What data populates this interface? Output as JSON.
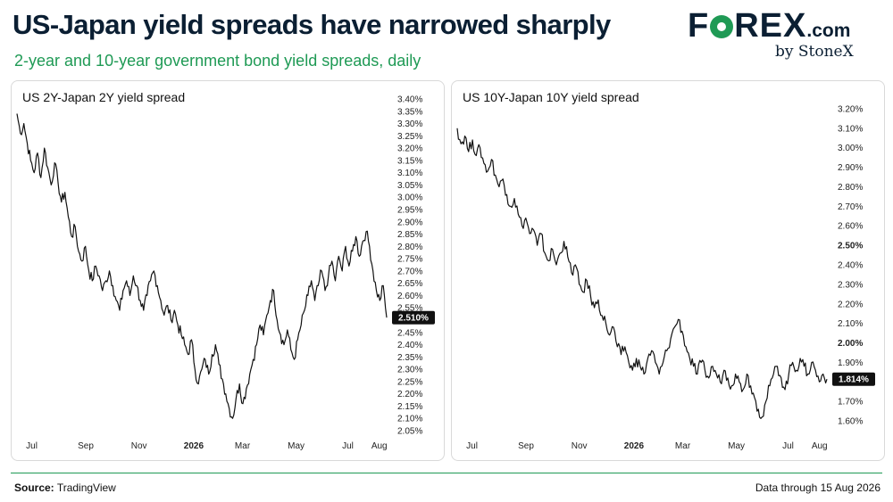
{
  "header": {
    "title": "US-Japan yield spreads have narrowed sharply",
    "subtitle": "2-year and 10-year government bond yield spreads, daily"
  },
  "logo": {
    "text_left": "F",
    "text_right": "REX",
    "suffix": ".com",
    "byline": "by StoneX"
  },
  "footer": {
    "source_label": "Source:",
    "source_value": "TradingView",
    "data_through": "Data through 15 Aug 2026"
  },
  "colors": {
    "line": "#111111",
    "accent_green": "#1f9a55",
    "navy": "#0b1f33",
    "badge_bg": "#111111",
    "badge_text": "#ffffff"
  },
  "chart_data": [
    {
      "type": "line",
      "title": "US 2Y-Japan 2Y yield spread",
      "ylim": [
        2.05,
        3.4
      ],
      "y_ticks": [
        "3.40%",
        "3.35%",
        "3.30%",
        "3.25%",
        "3.20%",
        "3.15%",
        "3.10%",
        "3.05%",
        "3.00%",
        "2.95%",
        "2.90%",
        "2.85%",
        "2.80%",
        "2.75%",
        "2.70%",
        "2.65%",
        "2.60%",
        "2.55%",
        "2.45%",
        "2.40%",
        "2.35%",
        "2.30%",
        "2.25%",
        "2.20%",
        "2.15%",
        "2.10%",
        "2.05%"
      ],
      "x_ticks": [
        {
          "label": "Jul",
          "pos": 0.04
        },
        {
          "label": "Sep",
          "pos": 0.186
        },
        {
          "label": "Nov",
          "pos": 0.33
        },
        {
          "label": "2026",
          "pos": 0.478,
          "bold": true
        },
        {
          "label": "Mar",
          "pos": 0.61
        },
        {
          "label": "May",
          "pos": 0.755
        },
        {
          "label": "Jul",
          "pos": 0.895
        },
        {
          "label": "Aug",
          "pos": 0.98
        }
      ],
      "last_value": 2.51,
      "last_label": "2.510%",
      "series": [
        {
          "values": [
            3.34,
            3.26,
            3.3,
            3.22,
            3.15,
            3.1,
            3.18,
            3.08,
            3.2,
            3.12,
            3.05,
            3.14,
            3.06,
            2.98,
            3.02,
            2.92,
            2.84,
            2.88,
            2.78,
            2.74,
            2.8,
            2.7,
            2.66,
            2.72,
            2.68,
            2.62,
            2.66,
            2.7,
            2.64,
            2.58,
            2.54,
            2.62,
            2.66,
            2.6,
            2.68,
            2.64,
            2.58,
            2.54,
            2.6,
            2.66,
            2.7,
            2.64,
            2.58,
            2.52,
            2.56,
            2.5,
            2.54,
            2.48,
            2.44,
            2.4,
            2.36,
            2.42,
            2.3,
            2.24,
            2.3,
            2.34,
            2.28,
            2.36,
            2.4,
            2.32,
            2.26,
            2.2,
            2.14,
            2.1,
            2.18,
            2.24,
            2.16,
            2.22,
            2.28,
            2.34,
            2.4,
            2.48,
            2.44,
            2.52,
            2.58,
            2.62,
            2.5,
            2.44,
            2.4,
            2.46,
            2.38,
            2.34,
            2.42,
            2.48,
            2.54,
            2.6,
            2.66,
            2.58,
            2.64,
            2.7,
            2.62,
            2.68,
            2.74,
            2.66,
            2.76,
            2.7,
            2.8,
            2.72,
            2.78,
            2.84,
            2.76,
            2.82,
            2.86,
            2.8,
            2.7,
            2.62,
            2.58,
            2.64,
            2.51
          ]
        }
      ]
    },
    {
      "type": "line",
      "title": "US 10Y-Japan 10Y yield spread",
      "ylim": [
        1.55,
        3.25
      ],
      "y_ticks": [
        {
          "label": "3.20%",
          "v": 3.2
        },
        {
          "label": "3.10%",
          "v": 3.1
        },
        {
          "label": "3.00%",
          "v": 3.0
        },
        {
          "label": "2.90%",
          "v": 2.9
        },
        {
          "label": "2.80%",
          "v": 2.8
        },
        {
          "label": "2.70%",
          "v": 2.7
        },
        {
          "label": "2.60%",
          "v": 2.6
        },
        {
          "label": "2.50%",
          "v": 2.5,
          "bold": true
        },
        {
          "label": "2.40%",
          "v": 2.4
        },
        {
          "label": "2.30%",
          "v": 2.3
        },
        {
          "label": "2.20%",
          "v": 2.2
        },
        {
          "label": "2.10%",
          "v": 2.1
        },
        {
          "label": "2.00%",
          "v": 2.0,
          "bold": true
        },
        {
          "label": "1.90%",
          "v": 1.9
        },
        {
          "label": "1.70%",
          "v": 1.7
        },
        {
          "label": "1.60%",
          "v": 1.6
        }
      ],
      "x_ticks": [
        {
          "label": "Jul",
          "pos": 0.04
        },
        {
          "label": "Sep",
          "pos": 0.186
        },
        {
          "label": "Nov",
          "pos": 0.33
        },
        {
          "label": "2026",
          "pos": 0.478,
          "bold": true
        },
        {
          "label": "Mar",
          "pos": 0.61
        },
        {
          "label": "May",
          "pos": 0.755
        },
        {
          "label": "Jul",
          "pos": 0.895
        },
        {
          "label": "Aug",
          "pos": 0.98
        }
      ],
      "last_value": 1.814,
      "last_label": "1.814%",
      "series": [
        {
          "values": [
            3.1,
            3.02,
            3.06,
            2.98,
            3.04,
            2.96,
            3.0,
            2.92,
            2.88,
            2.94,
            2.86,
            2.8,
            2.84,
            2.76,
            2.7,
            2.74,
            2.66,
            2.6,
            2.64,
            2.56,
            2.58,
            2.5,
            2.56,
            2.46,
            2.42,
            2.48,
            2.4,
            2.46,
            2.52,
            2.44,
            2.36,
            2.4,
            2.3,
            2.26,
            2.32,
            2.24,
            2.18,
            2.22,
            2.14,
            2.1,
            2.04,
            2.08,
            1.98,
            1.94,
            1.98,
            1.9,
            1.86,
            1.92,
            1.88,
            1.84,
            1.92,
            1.96,
            1.9,
            1.84,
            1.9,
            1.96,
            2.02,
            2.08,
            2.12,
            2.06,
            1.98,
            1.92,
            1.88,
            1.84,
            1.9,
            1.86,
            1.82,
            1.88,
            1.84,
            1.8,
            1.86,
            1.82,
            1.78,
            1.84,
            1.8,
            1.76,
            1.84,
            1.78,
            1.72,
            1.66,
            1.62,
            1.7,
            1.78,
            1.84,
            1.88,
            1.82,
            1.76,
            1.84,
            1.9,
            1.86,
            1.92,
            1.88,
            1.84,
            1.9,
            1.86,
            1.8,
            1.84,
            1.814
          ]
        }
      ]
    }
  ]
}
